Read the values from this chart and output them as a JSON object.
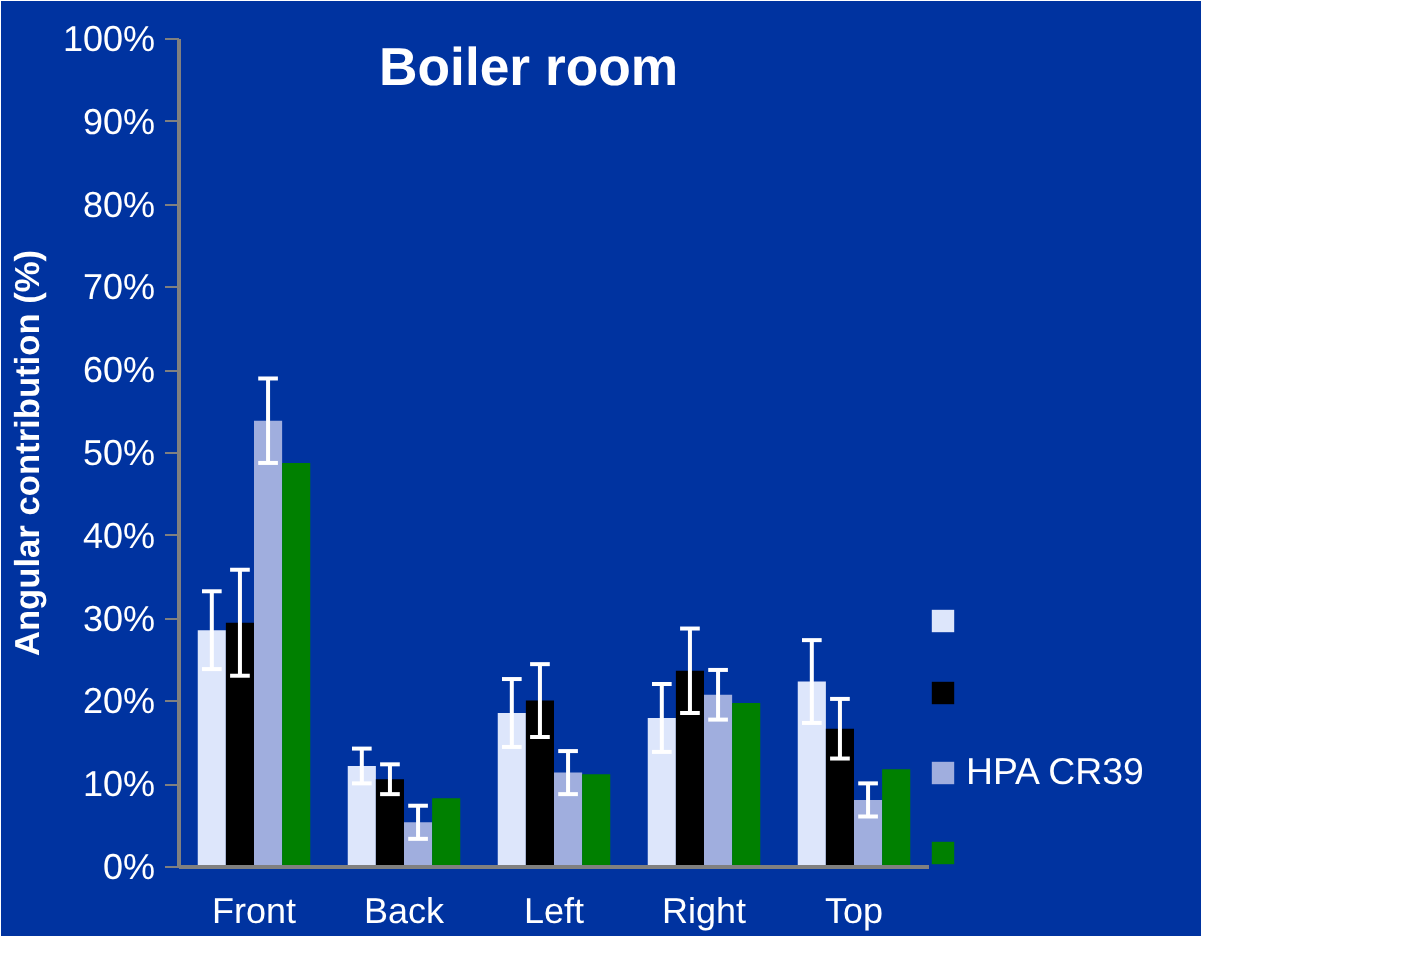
{
  "chart_data": {
    "type": "bar",
    "title": "Boiler room",
    "ylabel": "Angular contribution (%)",
    "categories": [
      "Front",
      "Back",
      "Left",
      "Right",
      "Top"
    ],
    "series": [
      {
        "color": "#dde6fb",
        "values": [
          28.6,
          12.2,
          18.6,
          18.0,
          22.4
        ],
        "errors": [
          4.7,
          2.1,
          4.1,
          4.1,
          5.0
        ]
      },
      {
        "color": "#000000",
        "values": [
          29.5,
          10.6,
          20.1,
          23.7,
          16.7
        ],
        "errors": [
          6.4,
          1.8,
          4.4,
          5.1,
          3.6
        ]
      },
      {
        "name": "HPA CR39",
        "color": "#a0aede",
        "values": [
          53.9,
          5.4,
          11.4,
          20.8,
          8.1
        ],
        "errors": [
          5.1,
          2.0,
          2.6,
          3.0,
          2.0
        ]
      },
      {
        "color": "#008000",
        "values": [
          48.8,
          8.3,
          11.2,
          19.8,
          11.8
        ]
      }
    ],
    "ylim": [
      0,
      100
    ],
    "yticks": [
      {
        "value": 0,
        "label": "0%"
      },
      {
        "value": 10,
        "label": "10%"
      },
      {
        "value": 20,
        "label": "20%"
      },
      {
        "value": 30,
        "label": "30%"
      },
      {
        "value": 40,
        "label": "40%"
      },
      {
        "value": 50,
        "label": "50%"
      },
      {
        "value": 60,
        "label": "60%"
      },
      {
        "value": 70,
        "label": "70%"
      },
      {
        "value": 80,
        "label": "80%"
      },
      {
        "value": 90,
        "label": "90%"
      },
      {
        "value": 100,
        "label": "100%"
      }
    ],
    "grid": false,
    "legend": "right"
  }
}
